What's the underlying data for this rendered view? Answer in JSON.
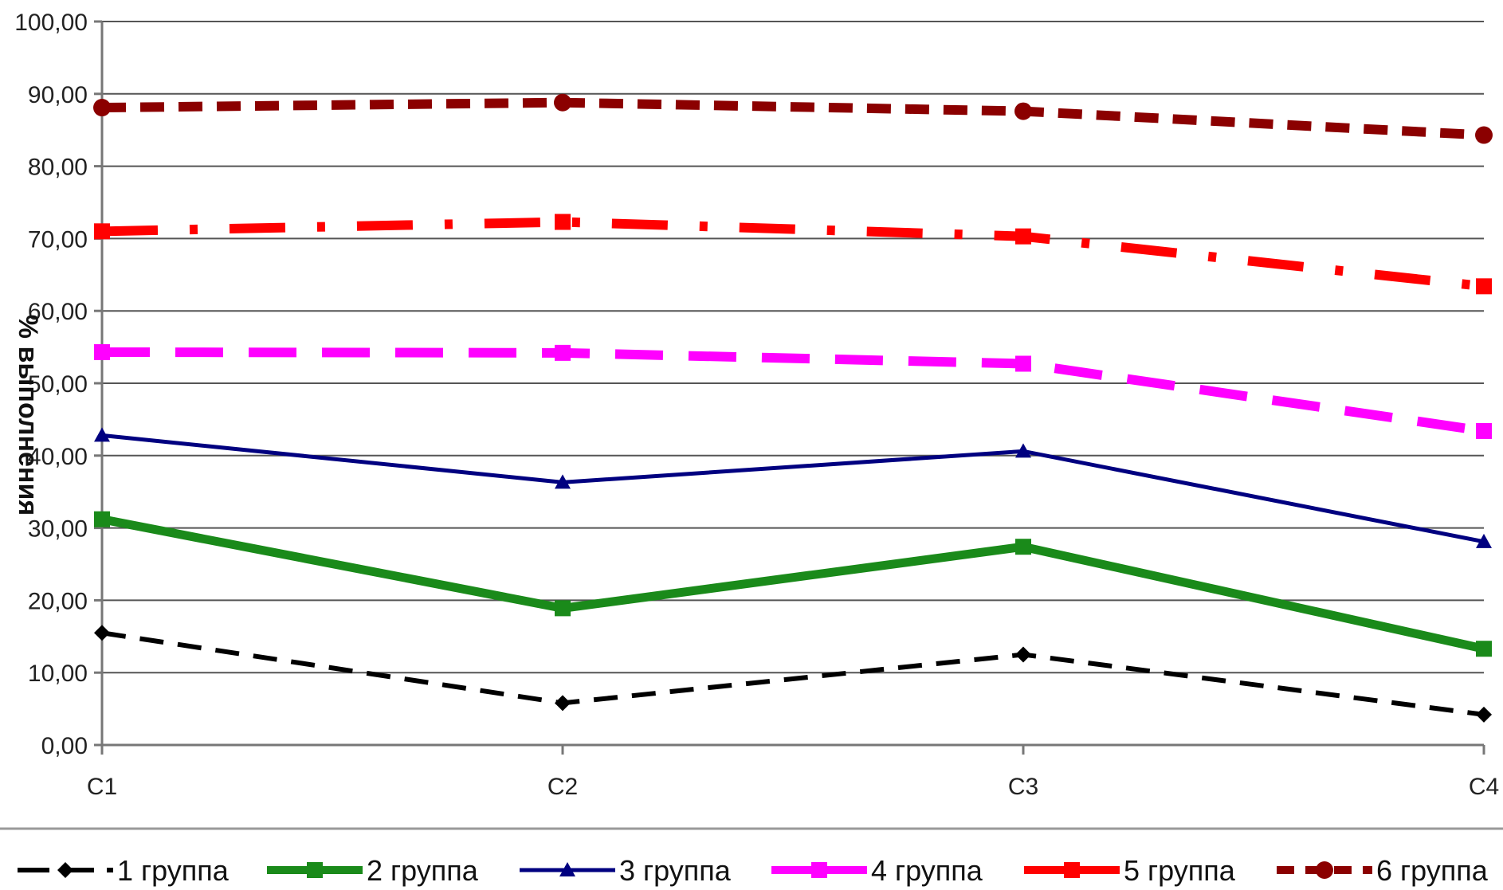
{
  "chart_data": {
    "type": "line",
    "categories": [
      "C1",
      "C2",
      "C3",
      "C4"
    ],
    "ylabel": "% выполнения",
    "xlabel": "",
    "ylim": [
      0,
      100
    ],
    "y_ticks": [
      "0,00",
      "10,00",
      "20,00",
      "30,00",
      "40,00",
      "50,00",
      "60,00",
      "70,00",
      "80,00",
      "90,00",
      "100,00"
    ],
    "grid": true,
    "legend_position": "bottom",
    "series": [
      {
        "name": "1 группа",
        "values": [
          15.5,
          5.8,
          12.5,
          4.2
        ],
        "color": "#000000",
        "marker": "diamond",
        "style": "dashed"
      },
      {
        "name": "2 группа",
        "values": [
          31.2,
          18.9,
          27.4,
          13.3
        ],
        "color": "#1a8a1a",
        "marker": "square",
        "style": "solid"
      },
      {
        "name": "3 группа",
        "values": [
          42.8,
          36.3,
          40.6,
          28.1
        ],
        "color": "#000080",
        "marker": "triangle",
        "style": "solid"
      },
      {
        "name": "4 группа",
        "values": [
          54.3,
          54.2,
          52.7,
          43.4
        ],
        "color": "#ff00ff",
        "marker": "square",
        "style": "longdash"
      },
      {
        "name": "5 группа",
        "values": [
          71.0,
          72.3,
          70.3,
          63.4
        ],
        "color": "#ff0000",
        "marker": "square",
        "style": "dashdot"
      },
      {
        "name": "6 группа",
        "values": [
          88.1,
          88.8,
          87.6,
          84.3
        ],
        "color": "#8b0000",
        "marker": "circle",
        "style": "dashed"
      }
    ]
  }
}
